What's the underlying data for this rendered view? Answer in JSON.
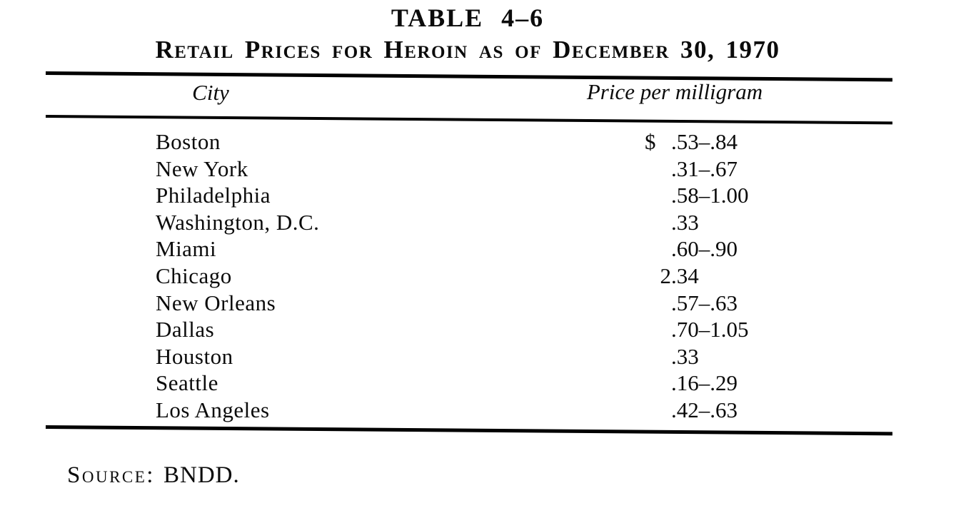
{
  "page": {
    "table_label": "TABLE 4–6",
    "title": "Retail Prices for Heroin as of December 30, 1970"
  },
  "table": {
    "columns": {
      "city": "City",
      "price": "Price per milligram"
    },
    "rows": [
      {
        "city": "Boston",
        "currency": "$",
        "price": ".53–.84"
      },
      {
        "city": "New York",
        "currency": "",
        "price": ".31–.67"
      },
      {
        "city": "Philadelphia",
        "currency": "",
        "price": ".58–1.00"
      },
      {
        "city": "Washington, D.C.",
        "currency": "",
        "price": ".33"
      },
      {
        "city": "Miami",
        "currency": "",
        "price": ".60–.90"
      },
      {
        "city": "Chicago",
        "currency": "",
        "price": "2.34"
      },
      {
        "city": "New Orleans",
        "currency": "",
        "price": ".57–.63"
      },
      {
        "city": "Dallas",
        "currency": "",
        "price": ".70–1.05"
      },
      {
        "city": "Houston",
        "currency": "",
        "price": ".33"
      },
      {
        "city": "Seattle",
        "currency": "",
        "price": ".16–.29"
      },
      {
        "city": "Los Angeles",
        "currency": "",
        "price": ".42–.63"
      }
    ]
  },
  "source": {
    "label": "Source:",
    "value": "BNDD."
  },
  "colors": {
    "ink": "#0b0b0b",
    "paper": "#ffffff"
  }
}
